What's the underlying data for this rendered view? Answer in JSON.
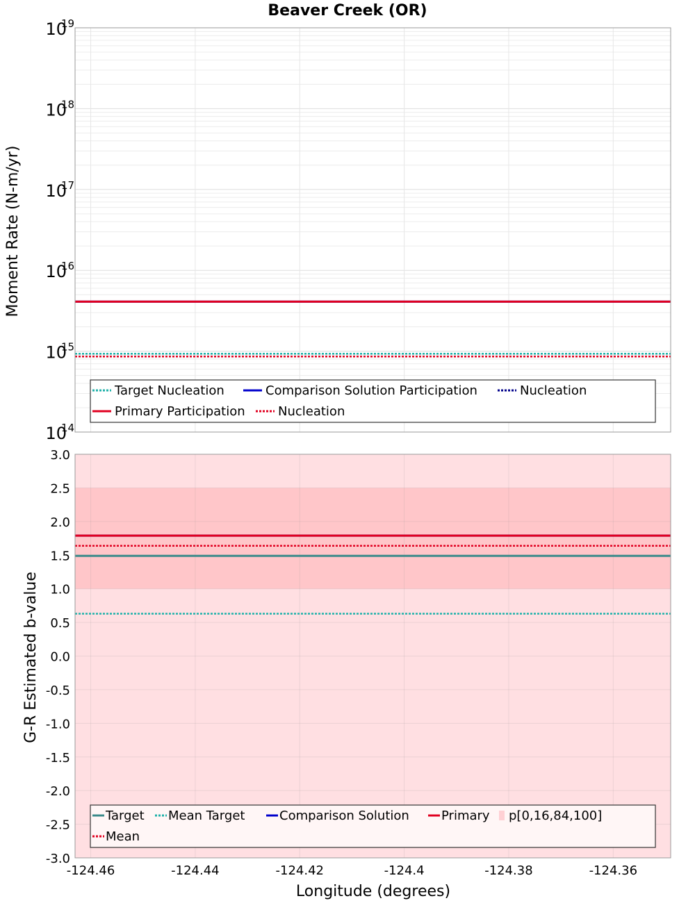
{
  "chart_data": {
    "title": "Beaver Creek (OR)",
    "xlabel": "Longitude (degrees)",
    "xlim": [
      -124.463,
      -124.349
    ],
    "xticks": [
      -124.46,
      -124.44,
      -124.42,
      -124.4,
      -124.38,
      -124.36
    ],
    "xtick_labels": [
      "-124.46",
      "-124.44",
      "-124.42",
      "-124.4",
      "-124.38",
      "-124.36"
    ],
    "panels": [
      {
        "id": "moment",
        "type": "line",
        "ylabel": "Moment Rate (N-m/yr)",
        "yscale": "log",
        "ylim_exponents": [
          14,
          19
        ],
        "ytick_exponents": [
          14,
          15,
          16,
          17,
          18,
          19
        ],
        "ytick_base": "10",
        "ytick_exp_labels": [
          "14",
          "15",
          "16",
          "17",
          "18",
          "19"
        ],
        "series": [
          {
            "name": "Target Nucleation",
            "color": "#20b2aa",
            "dash": "dotted",
            "value": 930000000000000.0
          },
          {
            "name": "Comparison Solution Participation",
            "color": "#0000cc",
            "dash": "solid",
            "value": 4100000000000000.0
          },
          {
            "name": "Nucleation",
            "color": "#00008b",
            "dash": "dotted",
            "value": 860000000000000.0
          },
          {
            "name": "Primary Participation",
            "color": "#e00020",
            "dash": "solid",
            "value": 4100000000000000.0
          },
          {
            "name": "Nucleation",
            "color": "#e00020",
            "dash": "dotted",
            "value": 860000000000000.0
          }
        ],
        "legend": {
          "position": "bottom",
          "rows": [
            [
              0,
              1,
              2
            ],
            [
              3,
              4
            ]
          ]
        }
      },
      {
        "id": "bvalue",
        "type": "line",
        "ylabel": "G-R Estimated b-value",
        "ylim": [
          -3.0,
          3.0
        ],
        "yticks": [
          3.0,
          2.5,
          2.0,
          1.5,
          1.0,
          0.5,
          0.0,
          -0.5,
          -1.0,
          -1.5,
          -2.0,
          -2.5,
          -3.0
        ],
        "ytick_labels": [
          "3.0",
          "2.5",
          "2.0",
          "1.5",
          "1.0",
          "0.5",
          "0.0",
          "-0.5",
          "-1.0",
          "-1.5",
          "-2.0",
          "-2.5",
          "-3.0"
        ],
        "bands": [
          {
            "name": "p[0,100]",
            "low": -3.0,
            "high": 3.0,
            "color": "#ffdfe2"
          },
          {
            "name": "p[16,84]",
            "low": 1.0,
            "high": 2.5,
            "color": "#ffc6c9"
          }
        ],
        "series": [
          {
            "name": "Target",
            "color": "#3a8a8a",
            "dash": "solid",
            "value": 1.49
          },
          {
            "name": "Mean Target",
            "color": "#20b2aa",
            "dash": "dotted",
            "value": 0.63
          },
          {
            "name": "Comparison Solution",
            "color": "#0000cc",
            "dash": "solid",
            "value": 1.79
          },
          {
            "name": "Primary",
            "color": "#e00020",
            "dash": "solid",
            "value": 1.79
          },
          {
            "name": "Mean",
            "color": "#e00020",
            "dash": "dotted",
            "value": 1.64
          }
        ],
        "legend": {
          "position": "bottom",
          "band_label": "p[0,16,84,100]",
          "band_color": "#ffd0d4",
          "rows": [
            [
              "s0",
              "s1",
              "s2",
              "s3",
              "band"
            ],
            [
              "s4"
            ]
          ]
        }
      }
    ]
  }
}
